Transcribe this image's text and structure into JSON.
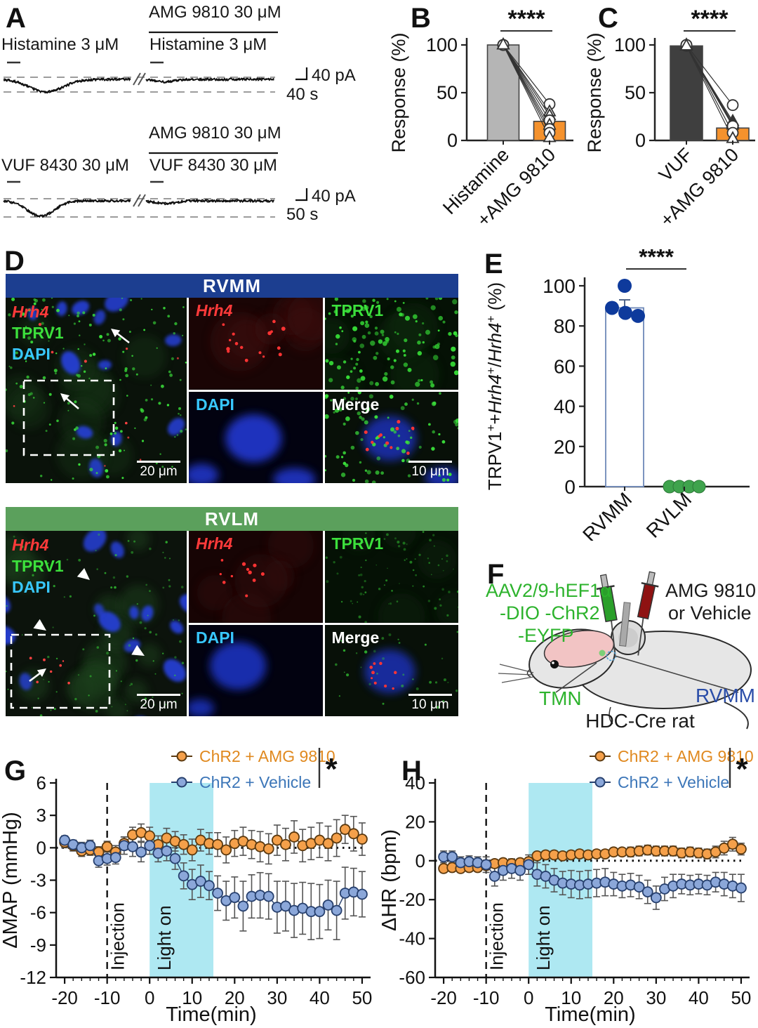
{
  "panelA": {
    "label": "A",
    "rows": [
      {
        "drug": "AMG 9810 30 μM",
        "pre": "Histamine 3 μM",
        "post": "Histamine 3 μM",
        "scale_v": "40 pA",
        "scale_h": "40 s"
      },
      {
        "drug": "AMG 9810 30 μM",
        "pre": "VUF 8430 30 μM",
        "post": "VUF 8430 30 μM",
        "scale_v": "40 pA",
        "scale_h": "50 s"
      }
    ]
  },
  "panelD": {
    "label": "D",
    "sections": [
      {
        "title": "RVMM",
        "header_color": "#1c3e90",
        "legend_lines": [
          "Hrh4",
          "TPRV1",
          "DAPI"
        ],
        "legend_colors": [
          "#ff3a3a",
          "#3ce03c",
          "#38c8ff"
        ],
        "legend_italic": [
          true,
          false,
          false
        ],
        "inset_labels": [
          "Hrh4",
          "TPRV1",
          "DAPI",
          "Merge"
        ],
        "inset_colors": [
          "#ff3a3a",
          "#3ce03c",
          "#38c8ff",
          "#ffffff"
        ],
        "inset_italic": [
          true,
          false,
          false,
          false
        ],
        "scale_main": "20 μm",
        "scale_inset": "10 μm"
      },
      {
        "title": "RVLM",
        "header_color": "#5ba05c",
        "legend_lines": [
          "Hrh4",
          "TPRV1",
          "DAPI"
        ],
        "legend_colors": [
          "#ff3a3a",
          "#3ce03c",
          "#38c8ff"
        ],
        "legend_italic": [
          true,
          false,
          false
        ],
        "inset_labels": [
          "Hrh4",
          "TPRV1",
          "DAPI",
          "Merge"
        ],
        "inset_colors": [
          "#ff3a3a",
          "#3ce03c",
          "#38c8ff",
          "#ffffff"
        ],
        "inset_italic": [
          true,
          false,
          false,
          false
        ],
        "scale_main": "20 μm",
        "scale_inset": "10 μm"
      }
    ]
  },
  "panelF": {
    "label": "F",
    "virus_lines": [
      "AAV2/9-hEF1α",
      "-DIO -ChR2",
      "-EYFP"
    ],
    "virus_color": "#2db32d",
    "drug_lines": [
      "AMG 9810",
      "or Vehicle"
    ],
    "tmn_label": "TMN",
    "rvmm_label": "RVMM",
    "rvmm_color": "#2a4da8",
    "rat_label": "HDC-Cre rat"
  },
  "chart_data": [
    {
      "id": "B",
      "type": "bar",
      "panel_label": "B",
      "ylabel": "Response (%)",
      "ylim": [
        0,
        100
      ],
      "yticks": [
        0,
        50,
        100
      ],
      "categories": [
        "Histamine",
        "+AMG 9810"
      ],
      "values": [
        100,
        20
      ],
      "bar_colors": [
        "#b5b5b5",
        "#f5922d"
      ],
      "errors": [
        0,
        4
      ],
      "paired_points": [
        [
          100,
          38
        ],
        [
          100,
          30
        ],
        [
          100,
          26
        ],
        [
          100,
          21
        ],
        [
          100,
          16
        ],
        [
          100,
          12
        ],
        [
          100,
          8
        ],
        [
          100,
          3
        ]
      ],
      "point_markers": [
        "circle",
        "triangle",
        "triangle",
        "circle",
        "triangle",
        "circle",
        "circle",
        "triangle"
      ],
      "significance": "****"
    },
    {
      "id": "C",
      "type": "bar",
      "panel_label": "C",
      "ylabel": "Response (%)",
      "ylim": [
        0,
        100
      ],
      "yticks": [
        0,
        50,
        100
      ],
      "categories": [
        "VUF",
        "+AMG 9810"
      ],
      "values": [
        99,
        13
      ],
      "bar_colors": [
        "#3f3f3f",
        "#f5922d"
      ],
      "errors": [
        0,
        5
      ],
      "paired_points": [
        [
          100,
          37
        ],
        [
          99,
          20
        ],
        [
          99,
          18
        ],
        [
          100,
          16
        ],
        [
          99,
          15
        ],
        [
          100,
          8
        ],
        [
          99,
          2
        ]
      ],
      "point_markers": [
        "circle",
        "triangle",
        "triangle",
        "triangle",
        "circle",
        "circle",
        "triangle"
      ],
      "significance": "****"
    },
    {
      "id": "E",
      "type": "scatter-bar",
      "panel_label": "E",
      "ylabel": "TRPV1⁺+Hrh4⁺/Hrh4⁺ (%)",
      "ylabel_segments": [
        {
          "t": "TRPV1"
        },
        {
          "t": "+",
          "sup": true
        },
        {
          "t": "+"
        },
        {
          "t": "Hrh4",
          "i": true
        },
        {
          "t": "+",
          "sup": true
        },
        {
          "t": "/"
        },
        {
          "t": "Hrh4",
          "i": true
        },
        {
          "t": "+",
          "sup": true
        },
        {
          "t": " (%)"
        }
      ],
      "ylim": [
        0,
        100
      ],
      "yticks": [
        0,
        20,
        40,
        60,
        80,
        100
      ],
      "categories": [
        "RVMM",
        "RVLM"
      ],
      "bar": {
        "category": "RVMM",
        "value": 89,
        "error": 4,
        "fill": "#ffffff",
        "stroke": "#6e88b8"
      },
      "points": {
        "RVMM": {
          "values": [
            100,
            89,
            86.5,
            85
          ],
          "color": "#0e3a9c"
        },
        "RVLM": {
          "values": [
            0,
            0,
            0,
            0
          ],
          "color": "#3fa34d"
        }
      },
      "significance": "****"
    },
    {
      "id": "G",
      "type": "line",
      "panel_label": "G",
      "ylabel": "ΔMAP (mmHg)",
      "xlabel": "Time(min)",
      "ylim": [
        -12,
        6
      ],
      "yticks": [
        6,
        3,
        0,
        -3,
        -6,
        -9,
        -12
      ],
      "xlim": [
        -22,
        51
      ],
      "xticks": [
        -20,
        -10,
        0,
        10,
        20,
        30,
        40,
        50
      ],
      "injection": {
        "x": -10,
        "label": "Injection"
      },
      "light": {
        "span": [
          0,
          15
        ],
        "label": "Light on",
        "color": "#aee8f2"
      },
      "significance": "*",
      "x": [
        -20,
        -18,
        -16,
        -14,
        -12,
        -10,
        -8,
        -6,
        -4,
        -2,
        0,
        2,
        4,
        6,
        8,
        10,
        12,
        14,
        16,
        18,
        20,
        22,
        24,
        26,
        28,
        30,
        32,
        34,
        36,
        38,
        40,
        42,
        44,
        46,
        48,
        50
      ],
      "series": [
        {
          "name": "ChR2 + AMG 9810",
          "fill": "#f5a04a",
          "stroke": "#5c3a10",
          "text_color": "#e0891f",
          "values": [
            0.5,
            0.2,
            -0.3,
            -0.2,
            -0.4,
            0.1,
            -0.4,
            0.4,
            1.2,
            1.4,
            1.1,
            0.3,
            0.9,
            0.6,
            0.3,
            -0.2,
            0.7,
            0.4,
            0.3,
            -0.2,
            0.4,
            0.6,
            0.3,
            0.1,
            -0.1,
            0.7,
            0.3,
            1.0,
            0.2,
            0.4,
            0.7,
            0.4,
            0.9,
            1.7,
            1.3,
            0.8
          ],
          "errors": [
            0.5,
            0.5,
            0.5,
            0.5,
            0.5,
            0.5,
            0.6,
            0.6,
            0.7,
            0.8,
            0.8,
            0.8,
            0.9,
            0.9,
            0.9,
            1.0,
            1.0,
            1.0,
            1.1,
            1.2,
            1.2,
            1.3,
            1.3,
            1.4,
            1.4,
            1.4,
            1.5,
            1.5,
            1.5,
            1.5,
            1.6,
            1.6,
            1.7,
            1.3,
            1.6,
            1.5
          ]
        },
        {
          "name": "ChR2 + Vehicle",
          "fill": "#8ba7d9",
          "stroke": "#27406e",
          "text_color": "#3c76b8",
          "values": [
            0.7,
            0.3,
            0.0,
            0.2,
            -1.2,
            -1.0,
            -0.9,
            0.2,
            0.1,
            -0.4,
            0.2,
            -0.5,
            -0.3,
            -1.0,
            -2.6,
            -3.4,
            -3.1,
            -3.5,
            -4.2,
            -4.9,
            -4.6,
            -5.4,
            -4.5,
            -4.4,
            -4.5,
            -5.5,
            -5.4,
            -5.8,
            -5.6,
            -5.9,
            -5.9,
            -5.3,
            -5.8,
            -4.2,
            -4.1,
            -4.3
          ],
          "errors": [
            0.4,
            0.4,
            0.5,
            0.5,
            0.6,
            0.6,
            0.6,
            0.8,
            0.9,
            0.9,
            0.8,
            0.8,
            0.9,
            1.0,
            1.2,
            1.4,
            1.5,
            1.3,
            1.6,
            1.8,
            1.9,
            2.3,
            2.0,
            2.1,
            2.1,
            2.4,
            2.3,
            2.5,
            2.4,
            2.6,
            2.5,
            2.3,
            2.7,
            2.4,
            2.2,
            2.1
          ]
        }
      ]
    },
    {
      "id": "H",
      "type": "line",
      "panel_label": "H",
      "ylabel": "ΔHR (bpm)",
      "xlabel": "Time(min)",
      "ylim": [
        -60,
        40
      ],
      "yticks": [
        40,
        20,
        0,
        -20,
        -40,
        -60
      ],
      "xlim": [
        -22,
        51
      ],
      "xticks": [
        -20,
        -10,
        0,
        10,
        20,
        30,
        40,
        50
      ],
      "injection": {
        "x": -10,
        "label": "Injection"
      },
      "light": {
        "span": [
          0,
          15
        ],
        "label": "Light on",
        "color": "#aee8f2"
      },
      "significance": "*",
      "x": [
        -20,
        -18,
        -16,
        -14,
        -12,
        -10,
        -8,
        -6,
        -4,
        -2,
        0,
        2,
        4,
        6,
        8,
        10,
        12,
        14,
        16,
        18,
        20,
        22,
        24,
        26,
        28,
        30,
        32,
        34,
        36,
        38,
        40,
        42,
        44,
        46,
        48,
        50
      ],
      "series": [
        {
          "name": "ChR2 + AMG 9810",
          "fill": "#f5a04a",
          "stroke": "#5c3a10",
          "text_color": "#e0891f",
          "values": [
            -4,
            -3.5,
            -4,
            -3.5,
            -3.5,
            -2.5,
            -1.5,
            -1,
            -1.5,
            -1,
            -0.5,
            2.5,
            3,
            3,
            2.5,
            3,
            3.5,
            3,
            3.5,
            3.5,
            4.5,
            4.5,
            4.5,
            5,
            5.5,
            5,
            5,
            5,
            4,
            4.5,
            4,
            3.5,
            4.5,
            6.5,
            8.5,
            6
          ],
          "errors": [
            2,
            2,
            2,
            2,
            2,
            2,
            2,
            2,
            2,
            2,
            2,
            2,
            2,
            2,
            2,
            2,
            2,
            2,
            2,
            2,
            2,
            2,
            2.5,
            2.5,
            2.5,
            2.5,
            2.5,
            2.5,
            2.5,
            2.5,
            2.5,
            2.5,
            3,
            3.5,
            3.5,
            3
          ]
        },
        {
          "name": "ChR2 + Vehicle",
          "fill": "#8ba7d9",
          "stroke": "#27406e",
          "text_color": "#3c76b8",
          "values": [
            2,
            2,
            -1,
            -0.5,
            -1,
            -2,
            -8,
            -5,
            -4,
            -5,
            -2,
            -7,
            -8,
            -10,
            -11.5,
            -12,
            -12.5,
            -12,
            -11.5,
            -11,
            -12,
            -13,
            -12.5,
            -13.5,
            -16,
            -19,
            -14.5,
            -13,
            -12,
            -12.5,
            -12,
            -12.5,
            -11,
            -12,
            -13,
            -14
          ],
          "errors": [
            3,
            3,
            3,
            3,
            3,
            4,
            5,
            5,
            5,
            5,
            5,
            6,
            6,
            6,
            6,
            7,
            7,
            7,
            7,
            7,
            6,
            6,
            6,
            6,
            6,
            6,
            6,
            6,
            5,
            5,
            5,
            5,
            5,
            6,
            6,
            7
          ]
        }
      ]
    }
  ]
}
